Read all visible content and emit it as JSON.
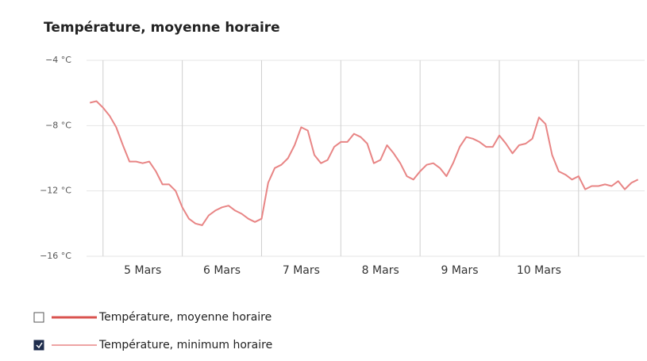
{
  "chart_data": {
    "type": "line",
    "title": "Température, moyenne horaire",
    "x": [
      -4,
      -2,
      0,
      2,
      4,
      6,
      8,
      10,
      12,
      14,
      16,
      18,
      20,
      22,
      24,
      26,
      28,
      30,
      32,
      34,
      36,
      38,
      40,
      42,
      44,
      46,
      48,
      50,
      52,
      54,
      56,
      58,
      60,
      62,
      64,
      66,
      68,
      70,
      72,
      74,
      76,
      78,
      80,
      82,
      84,
      86,
      88,
      90,
      92,
      94,
      96,
      98,
      100,
      102,
      104,
      106,
      108,
      110,
      112,
      114,
      116,
      118,
      120,
      122,
      124,
      126,
      128,
      130,
      132,
      134,
      136,
      138,
      140,
      142,
      144,
      146,
      148,
      150,
      152,
      154,
      156,
      158,
      160,
      162
    ],
    "series": [
      {
        "name": "Température, minimum horaire",
        "color": "#e88585",
        "values": [
          -6.6,
          -6.5,
          -6.9,
          -7.4,
          -8.1,
          -9.2,
          -10.2,
          -10.2,
          -10.3,
          -10.2,
          -10.8,
          -11.6,
          -11.6,
          -12.0,
          -13.0,
          -13.7,
          -14.0,
          -14.1,
          -13.5,
          -13.2,
          -13.0,
          -12.9,
          -13.2,
          -13.4,
          -13.7,
          -13.9,
          -13.7,
          -11.5,
          -10.6,
          -10.4,
          -10.0,
          -9.2,
          -8.1,
          -8.3,
          -9.8,
          -10.3,
          -10.1,
          -9.3,
          -9.0,
          -9.0,
          -8.5,
          -8.7,
          -9.1,
          -10.3,
          -10.1,
          -9.2,
          -9.7,
          -10.3,
          -11.1,
          -11.3,
          -10.8,
          -10.4,
          -10.3,
          -10.6,
          -11.1,
          -10.3,
          -9.3,
          -8.7,
          -8.8,
          -9.0,
          -9.3,
          -9.3,
          -8.6,
          -9.1,
          -9.7,
          -9.2,
          -9.1,
          -8.8,
          -7.5,
          -7.9,
          -9.8,
          -10.8,
          -11.0,
          -11.3,
          -11.1,
          -11.9,
          -11.7,
          -11.7,
          -11.6,
          -11.7,
          -11.4,
          -11.9,
          -11.5,
          -11.3
        ]
      }
    ],
    "hidden_series": [
      {
        "name": "Température, moyenne horaire",
        "color": "#d9534f"
      }
    ],
    "xlim": [
      -5,
      164
    ],
    "x_grid": [
      0,
      24,
      48,
      72,
      96,
      120,
      144
    ],
    "xticks": [
      {
        "value": 12,
        "label": "5 Mars"
      },
      {
        "value": 36,
        "label": "6 Mars"
      },
      {
        "value": 60,
        "label": "7 Mars"
      },
      {
        "value": 84,
        "label": "8 Mars"
      },
      {
        "value": 108,
        "label": "9 Mars"
      },
      {
        "value": 132,
        "label": "10 Mars"
      }
    ],
    "ylim": [
      -16,
      -4
    ],
    "yticks": [
      {
        "value": -4,
        "label": "−4 °C"
      },
      {
        "value": -8,
        "label": "−8 °C"
      },
      {
        "value": -12,
        "label": "−12 °C"
      },
      {
        "value": -16,
        "label": "−16 °C"
      }
    ],
    "grid": true
  }
}
